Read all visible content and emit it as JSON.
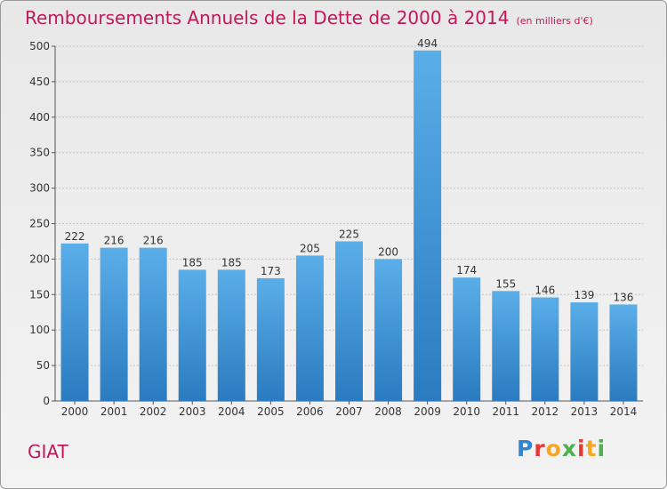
{
  "header": {
    "title": "Remboursements Annuels de la Dette de 2000 à 2014",
    "subtitle": "(en milliers d'€)"
  },
  "footer": {
    "commune": "GIAT",
    "logo_text": "Proxiti",
    "logo_colors": [
      "#2e86d6",
      "#e53935",
      "#f5a623",
      "#4caf50",
      "#e53935",
      "#f5a623",
      "#4caf50"
    ]
  },
  "chart_data": {
    "type": "bar",
    "categories": [
      "2000",
      "2001",
      "2002",
      "2003",
      "2004",
      "2005",
      "2006",
      "2007",
      "2008",
      "2009",
      "2010",
      "2011",
      "2012",
      "2013",
      "2014"
    ],
    "values": [
      222,
      216,
      216,
      185,
      185,
      173,
      205,
      225,
      200,
      494,
      174,
      155,
      146,
      139,
      136
    ],
    "title": "Remboursements Annuels de la Dette de 2000 à 2014",
    "subtitle": "(en milliers d'€)",
    "ylim": [
      0,
      500
    ],
    "yticks": [
      0,
      50,
      100,
      150,
      200,
      250,
      300,
      350,
      400,
      450,
      500
    ],
    "grid": true,
    "bar_color_top": "#5aaee8",
    "bar_color_bottom": "#2a7bc0"
  }
}
